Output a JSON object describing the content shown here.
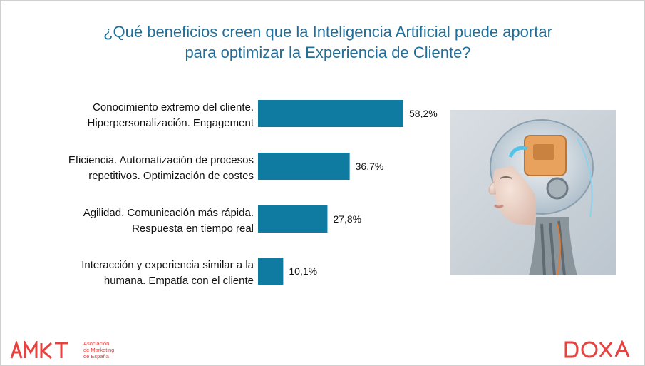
{
  "slide": {
    "title_line1": "¿Qué beneficios creen que la Inteligencia Artificial puede aportar",
    "title_line2": "para optimizar la Experiencia de Cliente?"
  },
  "chart_data": {
    "type": "bar",
    "orientation": "horizontal",
    "categories": [
      [
        "Conocimiento extremo del cliente.",
        "Hiperpersonalización. Engagement"
      ],
      [
        "Eficiencia. Automatización de procesos",
        "repetitivos. Optimización de costes"
      ],
      [
        "Agilidad. Comunicación más rápida.",
        "Respuesta en tiempo real"
      ],
      [
        "Interacción y experiencia similar a la",
        "humana. Empatía con el cliente"
      ]
    ],
    "values": [
      58.2,
      36.7,
      27.8,
      10.1
    ],
    "value_labels": [
      "58,2%",
      "36,7%",
      "27,8%",
      "10,1%"
    ],
    "unit": "%",
    "bar_color": "#0f7ba1",
    "xlim": [
      0,
      100
    ],
    "grid": false,
    "legend": "none"
  },
  "image": {
    "subject": "ai-robot-head-photo"
  },
  "footer": {
    "amkt_logo": "AMKT",
    "amkt_subtitle": [
      "Asociación",
      "de Marketing",
      "de España"
    ],
    "doxa_logo": "DOXA",
    "brand_color": "#e8423f"
  }
}
